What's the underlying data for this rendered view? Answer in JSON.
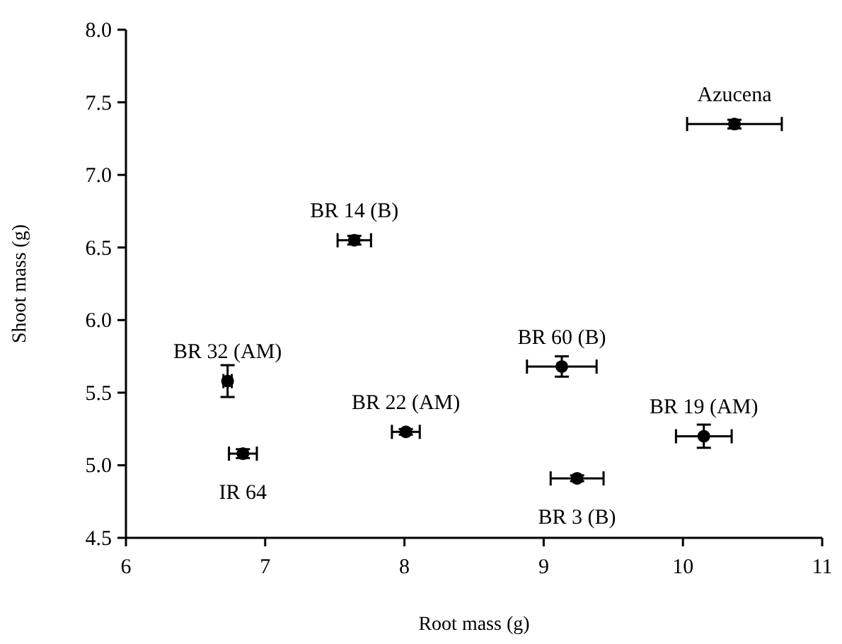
{
  "chart_data": {
    "type": "scatter",
    "xlabel": "Root mass (g)",
    "ylabel": "Shoot mass (g)",
    "xlim": [
      6,
      11
    ],
    "xticks": [
      6,
      7,
      8,
      9,
      10,
      11
    ],
    "ylim": [
      4.5,
      8.0
    ],
    "yticks": [
      {
        "value": 4.5,
        "label": "4.5"
      },
      {
        "value": 5,
        "label": "5.0"
      },
      {
        "value": 5.5,
        "label": "5.5"
      },
      {
        "value": 6,
        "label": "6.0"
      },
      {
        "value": 6.5,
        "label": "6.5"
      },
      {
        "value": 7,
        "label": "7.0"
      },
      {
        "value": 7.5,
        "label": "7.5"
      },
      {
        "value": 8,
        "label": "8.0"
      }
    ],
    "marker": "circle",
    "grid": false,
    "series": [
      {
        "color": "#000000",
        "x": [
          10.37,
          7.64,
          6.73,
          6.84,
          8.01,
          9.13,
          10.15,
          9.24
        ],
        "values": [
          7.35,
          6.55,
          5.58,
          5.08,
          5.23,
          5.68,
          5.2,
          4.91
        ],
        "errors": [
          0.03,
          0.03,
          0.11,
          0.03,
          0.02,
          0.07,
          0.08,
          0.02
        ],
        "xerrors": [
          0.34,
          0.12,
          0.03,
          0.1,
          0.1,
          0.25,
          0.2,
          0.19
        ]
      }
    ],
    "annotations": [
      {
        "text": "Azucena",
        "x": 10.37,
        "y": 7.35
      },
      {
        "text": "BR 14 (B)",
        "x": 7.64,
        "y": 6.55
      },
      {
        "text": "BR 32 (AM)",
        "x": 6.73,
        "y": 5.58
      },
      {
        "text": "IR 64",
        "x": 6.84,
        "y": 5.08
      },
      {
        "text": "BR 22 (AM)",
        "x": 8.01,
        "y": 5.23
      },
      {
        "text": "BR 60 (B)",
        "x": 9.13,
        "y": 5.68
      },
      {
        "text": "BR 19 (AM)",
        "x": 10.15,
        "y": 5.2
      },
      {
        "text": "BR 3 (B)",
        "x": 9.24,
        "y": 4.91
      }
    ]
  }
}
